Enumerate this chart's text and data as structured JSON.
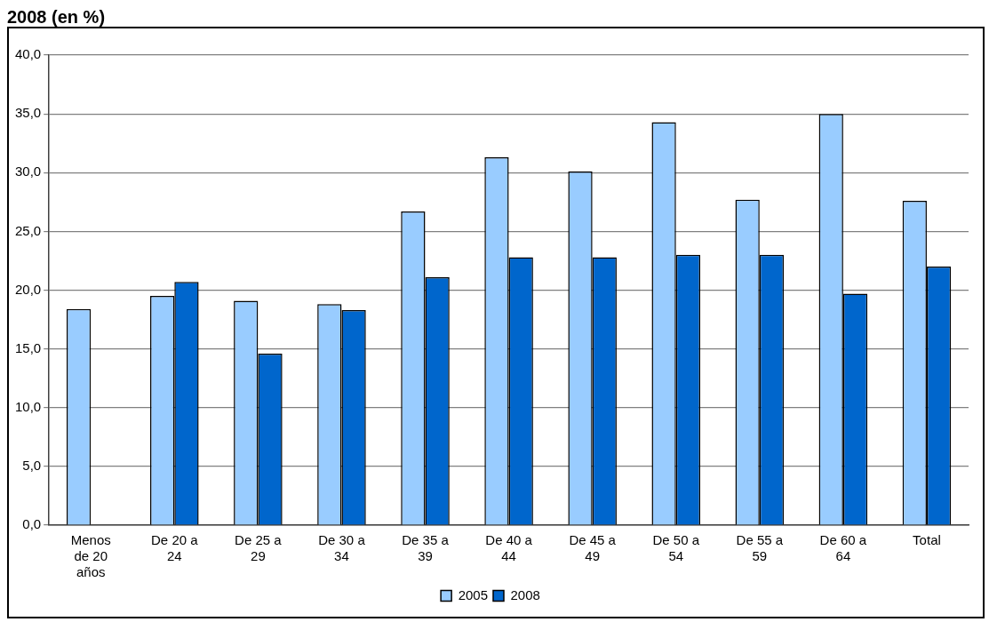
{
  "chart_data": {
    "type": "bar",
    "title": "2008 (en %)",
    "categories": [
      "Menos de 20 años",
      "De 20 a 24",
      "De 25 a 29",
      "De 30 a 34",
      "De 35 a 39",
      "De 40 a 44",
      "De 45 a 49",
      "De 50 a 54",
      "De 55 a 59",
      "De 60 a 64",
      "Total"
    ],
    "series": [
      {
        "name": "2005",
        "color": "#99ccff",
        "values": [
          18.4,
          19.5,
          19.1,
          18.8,
          26.7,
          31.3,
          30.1,
          34.3,
          27.7,
          35.0,
          27.6
        ]
      },
      {
        "name": "2008",
        "color": "#0066cc",
        "values": [
          null,
          20.7,
          14.6,
          18.3,
          21.1,
          22.8,
          22.8,
          23.0,
          23.0,
          19.7,
          22.0
        ]
      }
    ],
    "ylim": [
      0,
      40
    ],
    "yticks": [
      {
        "value": 0,
        "label": "0,0"
      },
      {
        "value": 5,
        "label": "5,0"
      },
      {
        "value": 10,
        "label": "10,0"
      },
      {
        "value": 15,
        "label": "15,0"
      },
      {
        "value": 20,
        "label": "20,0"
      },
      {
        "value": 25,
        "label": "25,0"
      },
      {
        "value": 30,
        "label": "30,0"
      },
      {
        "value": 35,
        "label": "35,0"
      },
      {
        "value": 40,
        "label": "40,0"
      }
    ],
    "grid": "y",
    "legend": "bottom"
  }
}
